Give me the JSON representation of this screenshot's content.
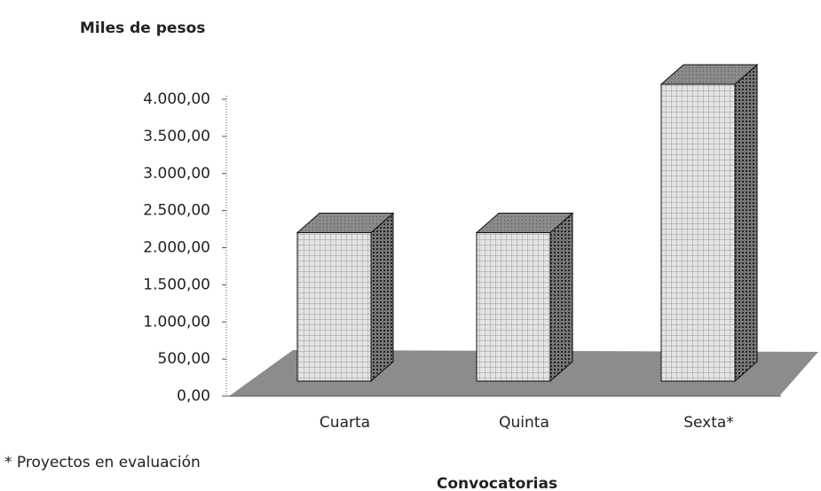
{
  "chart_data": {
    "type": "bar3d",
    "title": "Miles de pesos",
    "x_label": "Convocatorias",
    "footnote": "* Proyectos en evaluación",
    "categories": [
      "Cuarta",
      "Quinta",
      "Sexta*"
    ],
    "values": [
      2000,
      2000,
      4000
    ],
    "ylim": [
      0,
      4000
    ],
    "yticks": [
      {
        "value": 0,
        "label": "0,00"
      },
      {
        "value": 500,
        "label": "500,00"
      },
      {
        "value": 1000,
        "label": "1.000,00"
      },
      {
        "value": 1500,
        "label": "1.500,00"
      },
      {
        "value": 2000,
        "label": "2.000,00"
      },
      {
        "value": 2500,
        "label": "2.500,00"
      },
      {
        "value": 3000,
        "label": "3.000,00"
      },
      {
        "value": 3500,
        "label": "3.500,00"
      },
      {
        "value": 4000,
        "label": "4.000,00"
      }
    ]
  }
}
